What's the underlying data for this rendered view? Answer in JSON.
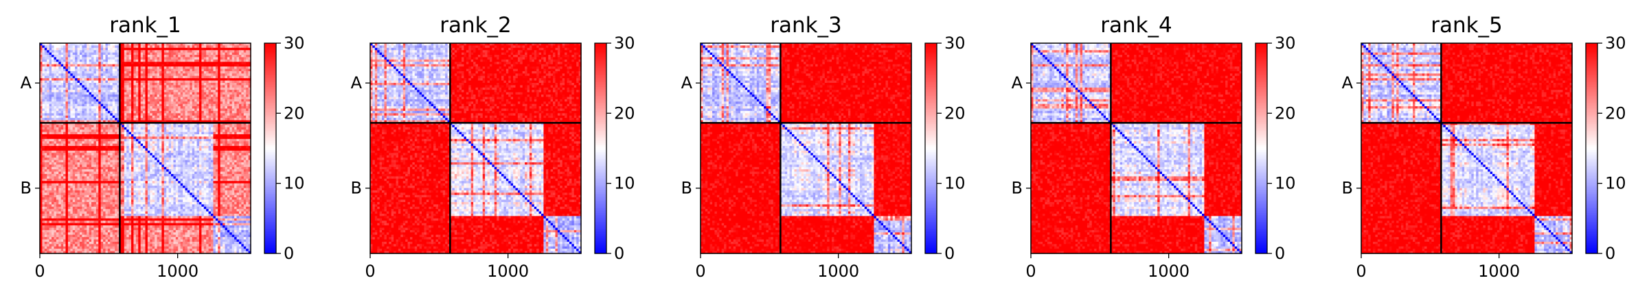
{
  "chart_data": [
    {
      "type": "heatmap",
      "title": "rank_1",
      "xticks": [
        "0",
        "1000"
      ],
      "x_tick_values": [
        0,
        1000
      ],
      "xlim": [
        0,
        1530
      ],
      "chains": [
        "A",
        "B"
      ],
      "chain_boundaries": [
        0,
        580,
        1530
      ],
      "colorbar": {
        "min": 0,
        "max": 30,
        "ticks": [
          "0",
          "10",
          "20",
          "30"
        ],
        "colormap": "bwr",
        "colors": [
          "#0000ff",
          "#ffffff",
          "#ff0000"
        ]
      },
      "domains": [
        {
          "range": [
            0,
            580
          ],
          "level": 0.25
        },
        {
          "range": [
            580,
            1260
          ],
          "level": 0.28
        },
        {
          "range": [
            1260,
            1530
          ],
          "level": 0.22
        }
      ],
      "inter_domain_level": 0.6
    },
    {
      "type": "heatmap",
      "title": "rank_2",
      "xticks": [
        "0",
        "1000"
      ],
      "x_tick_values": [
        0,
        1000
      ],
      "xlim": [
        0,
        1530
      ],
      "chains": [
        "A",
        "B"
      ],
      "chain_boundaries": [
        0,
        580,
        1530
      ],
      "colorbar": {
        "min": 0,
        "max": 30,
        "ticks": [
          "0",
          "10",
          "20",
          "30"
        ],
        "colormap": "bwr",
        "colors": [
          "#0000ff",
          "#ffffff",
          "#ff0000"
        ]
      },
      "domains": [
        {
          "range": [
            0,
            580
          ],
          "level": 0.25
        },
        {
          "range": [
            580,
            1260
          ],
          "level": 0.3
        },
        {
          "range": [
            1260,
            1530
          ],
          "level": 0.22
        }
      ],
      "inter_domain_level": 0.88
    },
    {
      "type": "heatmap",
      "title": "rank_3",
      "xticks": [
        "0",
        "1000"
      ],
      "x_tick_values": [
        0,
        1000
      ],
      "xlim": [
        0,
        1530
      ],
      "chains": [
        "A",
        "B"
      ],
      "chain_boundaries": [
        0,
        580,
        1530
      ],
      "colorbar": {
        "min": 0,
        "max": 30,
        "ticks": [
          "0",
          "10",
          "20",
          "30"
        ],
        "colormap": "bwr",
        "colors": [
          "#0000ff",
          "#ffffff",
          "#ff0000"
        ]
      },
      "domains": [
        {
          "range": [
            0,
            580
          ],
          "level": 0.25
        },
        {
          "range": [
            580,
            1260
          ],
          "level": 0.3
        },
        {
          "range": [
            1260,
            1530
          ],
          "level": 0.22
        }
      ],
      "inter_domain_level": 0.9
    },
    {
      "type": "heatmap",
      "title": "rank_4",
      "xticks": [
        "0",
        "1000"
      ],
      "x_tick_values": [
        0,
        1000
      ],
      "xlim": [
        0,
        1530
      ],
      "chains": [
        "A",
        "B"
      ],
      "chain_boundaries": [
        0,
        580,
        1530
      ],
      "colorbar": {
        "min": 0,
        "max": 30,
        "ticks": [
          "0",
          "10",
          "20",
          "30"
        ],
        "colormap": "bwr",
        "colors": [
          "#0000ff",
          "#ffffff",
          "#ff0000"
        ]
      },
      "domains": [
        {
          "range": [
            0,
            580
          ],
          "level": 0.25
        },
        {
          "range": [
            580,
            1260
          ],
          "level": 0.3
        },
        {
          "range": [
            1260,
            1530
          ],
          "level": 0.22
        }
      ],
      "inter_domain_level": 0.9
    },
    {
      "type": "heatmap",
      "title": "rank_5",
      "xticks": [
        "0",
        "1000"
      ],
      "x_tick_values": [
        0,
        1000
      ],
      "xlim": [
        0,
        1530
      ],
      "chains": [
        "A",
        "B"
      ],
      "chain_boundaries": [
        0,
        580,
        1530
      ],
      "colorbar": {
        "min": 0,
        "max": 30,
        "ticks": [
          "0",
          "10",
          "20",
          "30"
        ],
        "colormap": "bwr",
        "colors": [
          "#0000ff",
          "#ffffff",
          "#ff0000"
        ]
      },
      "domains": [
        {
          "range": [
            0,
            580
          ],
          "level": 0.25
        },
        {
          "range": [
            580,
            1260
          ],
          "level": 0.3
        },
        {
          "range": [
            1260,
            1530
          ],
          "level": 0.22
        }
      ],
      "inter_domain_level": 0.9
    }
  ]
}
